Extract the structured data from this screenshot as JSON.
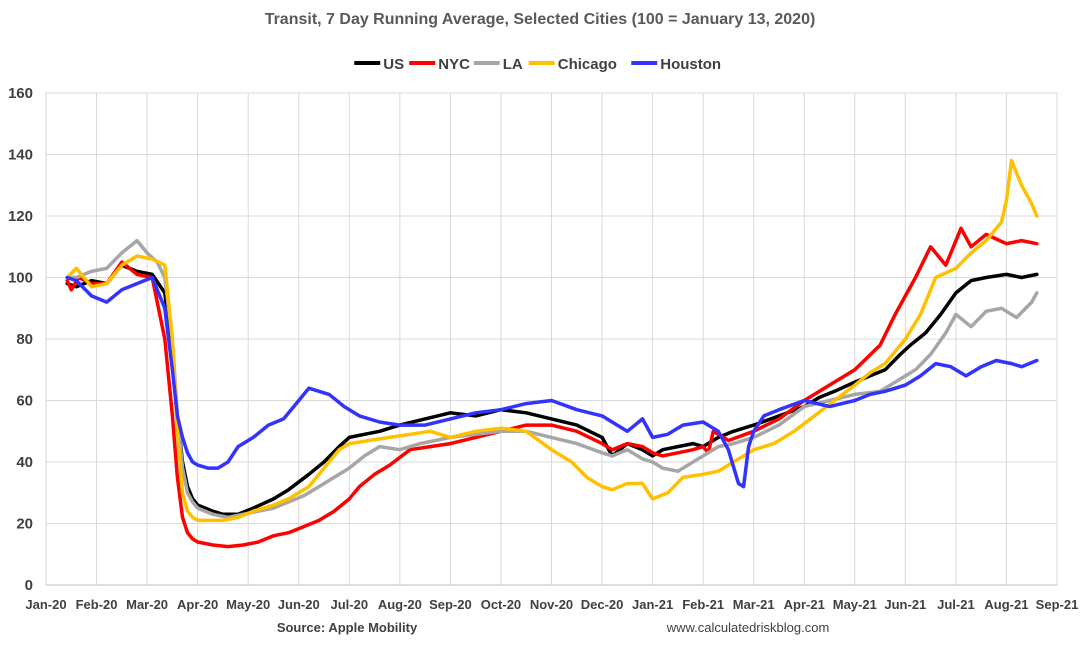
{
  "chart_data": {
    "type": "line",
    "title": "Transit, 7 Day Running Average, Selected Cities (100 = January 13, 2020)",
    "source": "Source: Apple Mobility",
    "website": "www.calculatedriskblog.com",
    "xlabel": "",
    "ylabel": "",
    "ylim": [
      0,
      160
    ],
    "yticks": [
      0,
      20,
      40,
      60,
      80,
      100,
      120,
      140,
      160
    ],
    "xlim": [
      0,
      20
    ],
    "xtick_labels": [
      "Jan-20",
      "Feb-20",
      "Mar-20",
      "Apr-20",
      "May-20",
      "Jun-20",
      "Jul-20",
      "Aug-20",
      "Sep-20",
      "Oct-20",
      "Nov-20",
      "Dec-20",
      "Jan-21",
      "Feb-21",
      "Mar-21",
      "Apr-21",
      "May-21",
      "Jun-21",
      "Jul-21",
      "Aug-21",
      "Sep-21"
    ],
    "grid": true,
    "legend_position": "top-center",
    "x_units": "months since Jan 1, 2020",
    "series": [
      {
        "name": "US",
        "color": "#000000",
        "x": [
          0.42,
          0.6,
          0.9,
          1.2,
          1.5,
          1.8,
          2.1,
          2.35,
          2.5,
          2.6,
          2.7,
          2.8,
          2.9,
          3.0,
          3.15,
          3.3,
          3.5,
          3.8,
          4.1,
          4.5,
          4.8,
          5.2,
          5.5,
          5.8,
          6.0,
          6.3,
          6.6,
          7.0,
          7.5,
          8.0,
          8.5,
          9.0,
          9.5,
          10.0,
          10.5,
          11.0,
          11.2,
          11.5,
          11.8,
          12.0,
          12.2,
          12.5,
          12.8,
          13.0,
          13.3,
          13.6,
          14.0,
          14.5,
          15.0,
          15.3,
          15.6,
          16.0,
          16.3,
          16.6,
          16.9,
          17.1,
          17.4,
          17.7,
          18.0,
          18.3,
          18.6,
          19.0,
          19.3,
          19.6
        ],
        "y": [
          98,
          97,
          99,
          98,
          104,
          102,
          101,
          95,
          75,
          55,
          40,
          32,
          28,
          26,
          25,
          24,
          23,
          23,
          25,
          28,
          31,
          36,
          40,
          45,
          48,
          49,
          50,
          52,
          54,
          56,
          55,
          57,
          56,
          54,
          52,
          48,
          42,
          46,
          44,
          42,
          44,
          45,
          46,
          45,
          48,
          50,
          52,
          55,
          58,
          61,
          63,
          66,
          68,
          70,
          75,
          78,
          82,
          88,
          95,
          99,
          100,
          101,
          100,
          101
        ]
      },
      {
        "name": "NYC",
        "color": "#ff0000",
        "x": [
          0.42,
          0.5,
          0.65,
          0.9,
          1.2,
          1.5,
          1.8,
          2.1,
          2.35,
          2.5,
          2.6,
          2.7,
          2.8,
          2.9,
          3.0,
          3.15,
          3.3,
          3.6,
          3.9,
          4.2,
          4.5,
          4.8,
          5.1,
          5.4,
          5.7,
          6.0,
          6.2,
          6.5,
          6.8,
          7.2,
          7.6,
          8.0,
          8.5,
          9.0,
          9.5,
          10.0,
          10.5,
          11.0,
          11.2,
          11.5,
          11.8,
          12.0,
          12.2,
          12.5,
          12.8,
          13.0,
          13.1,
          13.2,
          13.5,
          14.0,
          14.5,
          15.0,
          15.5,
          16.0,
          16.5,
          16.8,
          17.2,
          17.5,
          17.8,
          18.1,
          18.3,
          18.6,
          19.0,
          19.3,
          19.6
        ],
        "y": [
          99,
          96,
          100,
          98,
          98,
          105,
          101,
          100,
          80,
          55,
          35,
          22,
          17,
          15,
          14,
          13.5,
          13,
          12.5,
          13,
          14,
          16,
          17,
          19,
          21,
          24,
          28,
          32,
          36,
          39,
          44,
          45,
          46,
          48,
          50,
          52,
          52,
          50,
          46,
          44,
          46,
          45,
          43,
          42,
          43,
          44,
          45,
          43,
          50,
          47,
          50,
          54,
          60,
          65,
          70,
          78,
          88,
          100,
          110,
          104,
          116,
          110,
          114,
          111,
          112,
          111
        ]
      },
      {
        "name": "LA",
        "color": "#a6a6a6",
        "x": [
          0.42,
          0.6,
          0.9,
          1.2,
          1.5,
          1.8,
          2.0,
          2.2,
          2.35,
          2.5,
          2.6,
          2.7,
          2.8,
          2.9,
          3.0,
          3.15,
          3.3,
          3.6,
          3.9,
          4.2,
          4.5,
          4.8,
          5.1,
          5.4,
          5.7,
          6.0,
          6.3,
          6.6,
          7.0,
          7.4,
          8.0,
          8.5,
          9.0,
          9.5,
          10.0,
          10.5,
          11.0,
          11.2,
          11.5,
          11.8,
          12.0,
          12.2,
          12.5,
          12.8,
          13.0,
          13.3,
          13.6,
          14.0,
          14.5,
          15.0,
          15.5,
          16.0,
          16.5,
          16.8,
          17.2,
          17.5,
          17.8,
          18.0,
          18.3,
          18.6,
          18.9,
          19.2,
          19.5,
          19.6
        ],
        "y": [
          100,
          100,
          102,
          103,
          108,
          112,
          108,
          105,
          100,
          80,
          55,
          38,
          30,
          27,
          25,
          24,
          23,
          22,
          23,
          24,
          25,
          27,
          29,
          32,
          35,
          38,
          42,
          45,
          44,
          46,
          48,
          49,
          50,
          50,
          48,
          46,
          43,
          42,
          44,
          41,
          40,
          38,
          37,
          40,
          42,
          45,
          46,
          48,
          52,
          58,
          60,
          62,
          63,
          66,
          70,
          75,
          82,
          88,
          84,
          89,
          90,
          87,
          92,
          95
        ]
      },
      {
        "name": "Chicago",
        "color": "#ffc000",
        "x": [
          0.42,
          0.6,
          0.9,
          1.2,
          1.5,
          1.8,
          2.1,
          2.35,
          2.5,
          2.6,
          2.7,
          2.8,
          2.9,
          3.0,
          3.2,
          3.5,
          3.8,
          4.1,
          4.5,
          4.8,
          5.2,
          5.5,
          5.8,
          6.0,
          6.4,
          6.8,
          7.2,
          7.6,
          8.0,
          8.5,
          9.0,
          9.5,
          10.0,
          10.4,
          10.7,
          11.0,
          11.2,
          11.5,
          11.8,
          12.0,
          12.3,
          12.6,
          13.0,
          13.3,
          13.6,
          14.0,
          14.4,
          14.8,
          15.2,
          15.6,
          16.0,
          16.3,
          16.6,
          17.0,
          17.3,
          17.6,
          18.0,
          18.3,
          18.6,
          18.9,
          19.0,
          19.1,
          19.3,
          19.5,
          19.6
        ],
        "y": [
          100,
          103,
          97,
          98,
          104,
          107,
          106,
          104,
          80,
          50,
          30,
          24,
          22,
          21,
          21,
          21,
          22,
          24,
          26,
          28,
          32,
          38,
          44,
          46,
          47,
          48,
          49,
          50,
          48,
          50,
          51,
          50,
          44,
          40,
          35,
          32,
          31,
          33,
          33,
          28,
          30,
          35,
          36,
          37,
          40,
          44,
          46,
          50,
          55,
          60,
          65,
          69,
          72,
          80,
          88,
          100,
          103,
          108,
          112,
          118,
          125,
          138,
          130,
          124,
          120
        ]
      },
      {
        "name": "Houston",
        "color": "#3333ff",
        "x": [
          0.42,
          0.6,
          0.9,
          1.2,
          1.5,
          1.8,
          2.1,
          2.35,
          2.5,
          2.6,
          2.7,
          2.8,
          2.9,
          3.0,
          3.2,
          3.4,
          3.6,
          3.8,
          4.1,
          4.4,
          4.7,
          5.0,
          5.2,
          5.4,
          5.6,
          5.9,
          6.2,
          6.6,
          7.0,
          7.5,
          8.0,
          8.5,
          9.0,
          9.5,
          10.0,
          10.5,
          11.0,
          11.3,
          11.5,
          11.8,
          12.0,
          12.3,
          12.6,
          13.0,
          13.3,
          13.5,
          13.7,
          13.8,
          13.9,
          14.0,
          14.2,
          14.5,
          15.0,
          15.5,
          16.0,
          16.3,
          16.6,
          17.0,
          17.3,
          17.6,
          17.9,
          18.2,
          18.5,
          18.8,
          19.1,
          19.3,
          19.6
        ],
        "y": [
          100,
          99,
          94,
          92,
          96,
          98,
          100,
          90,
          70,
          55,
          48,
          43,
          40,
          39,
          38,
          38,
          40,
          45,
          48,
          52,
          54,
          60,
          64,
          63,
          62,
          58,
          55,
          53,
          52,
          52,
          54,
          56,
          57,
          59,
          60,
          57,
          55,
          52,
          50,
          54,
          48,
          49,
          52,
          53,
          50,
          44,
          33,
          32,
          45,
          50,
          55,
          57,
          60,
          58,
          60,
          62,
          63,
          65,
          68,
          72,
          71,
          68,
          71,
          73,
          72,
          71,
          73
        ]
      }
    ]
  }
}
